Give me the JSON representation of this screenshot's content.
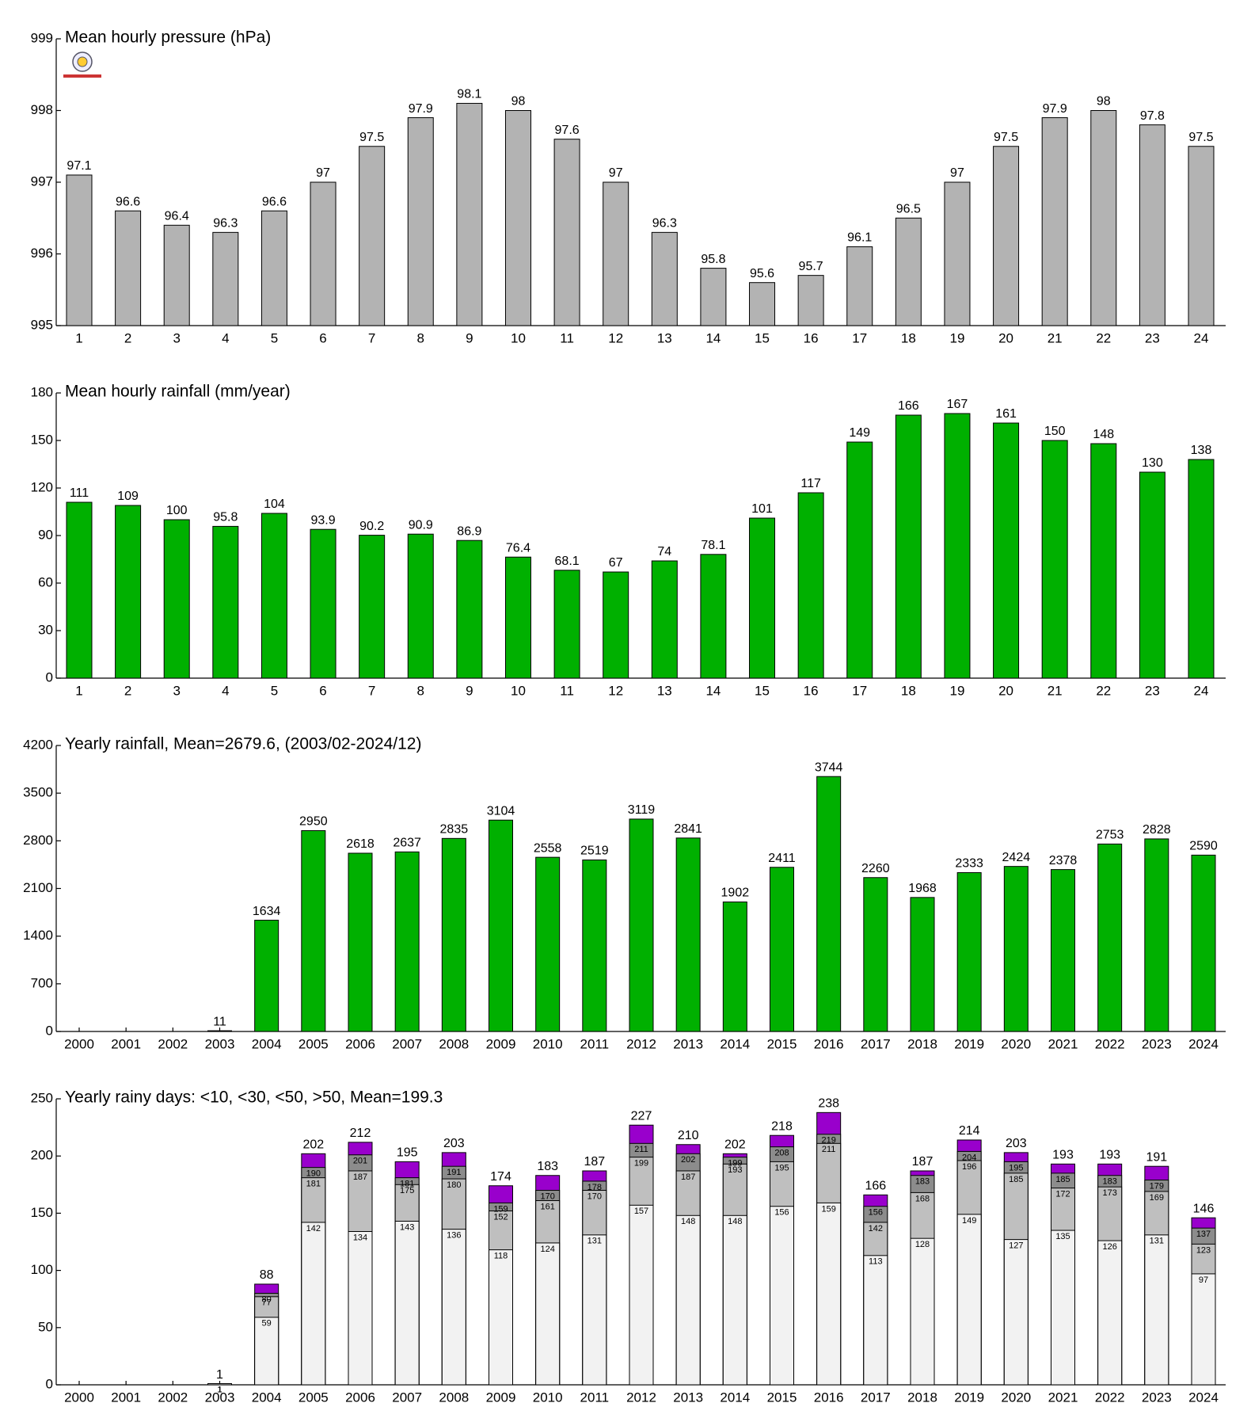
{
  "chart_data": [
    {
      "type": "bar",
      "title": "Mean hourly pressure (hPa)",
      "categories": [
        "1",
        "2",
        "3",
        "4",
        "5",
        "6",
        "7",
        "8",
        "9",
        "10",
        "11",
        "12",
        "13",
        "14",
        "15",
        "16",
        "17",
        "18",
        "19",
        "20",
        "21",
        "22",
        "23",
        "24"
      ],
      "values": [
        997.1,
        996.6,
        996.4,
        996.3,
        996.6,
        997,
        997.5,
        997.9,
        998.1,
        998,
        997.6,
        997,
        996.3,
        995.8,
        995.6,
        995.7,
        996.1,
        996.5,
        997,
        997.5,
        997.9,
        998,
        997.8,
        997.5
      ],
      "value_labels": [
        "97.1",
        "96.6",
        "96.4",
        "96.3",
        "96.6",
        "97",
        "97.5",
        "97.9",
        "98.1",
        "98",
        "97.6",
        "97",
        "96.3",
        "95.8",
        "95.6",
        "95.7",
        "96.1",
        "96.5",
        "97",
        "97.5",
        "97.9",
        "98",
        "97.8",
        "97.5"
      ],
      "color": "#b3b3b3",
      "ylim": [
        995,
        999
      ],
      "yticks": [
        995,
        996,
        997,
        998,
        999
      ]
    },
    {
      "type": "bar",
      "title": "Mean hourly rainfall (mm/year)",
      "categories": [
        "1",
        "2",
        "3",
        "4",
        "5",
        "6",
        "7",
        "8",
        "9",
        "10",
        "11",
        "12",
        "13",
        "14",
        "15",
        "16",
        "17",
        "18",
        "19",
        "20",
        "21",
        "22",
        "23",
        "24"
      ],
      "values": [
        111,
        109,
        100,
        95.8,
        104,
        93.9,
        90.2,
        90.9,
        86.9,
        76.4,
        68.1,
        67,
        74,
        78.1,
        101,
        117,
        149,
        166,
        167,
        161,
        150,
        148,
        130,
        138
      ],
      "color": "#00b000",
      "ylim": [
        0,
        180
      ],
      "yticks": [
        0,
        30,
        60,
        90,
        120,
        150,
        180
      ]
    },
    {
      "type": "bar",
      "title": "Yearly rainfall, Mean=2679.6, (2003/02-2024/12)",
      "categories": [
        "2000",
        "2001",
        "2002",
        "2003",
        "2004",
        "2005",
        "2006",
        "2007",
        "2008",
        "2009",
        "2010",
        "2011",
        "2012",
        "2013",
        "2014",
        "2015",
        "2016",
        "2017",
        "2018",
        "2019",
        "2020",
        "2021",
        "2022",
        "2023",
        "2024"
      ],
      "values": [
        null,
        null,
        null,
        11,
        1634,
        2950,
        2618,
        2637,
        2835,
        3104,
        2558,
        2519,
        3119,
        2841,
        1902,
        2411,
        3744,
        2260,
        1968,
        2333,
        2424,
        2378,
        2753,
        2828,
        2590
      ],
      "color": "#00b000",
      "ylim": [
        0,
        4200
      ],
      "yticks": [
        0,
        700,
        1400,
        2100,
        2800,
        3500,
        4200
      ]
    },
    {
      "type": "bar",
      "title": "Yearly rainy days: <10, <30, <50, >50, Mean=199.3",
      "categories": [
        "2000",
        "2001",
        "2002",
        "2003",
        "2004",
        "2005",
        "2006",
        "2007",
        "2008",
        "2009",
        "2010",
        "2011",
        "2012",
        "2013",
        "2014",
        "2015",
        "2016",
        "2017",
        "2018",
        "2019",
        "2020",
        "2021",
        "2022",
        "2023",
        "2024"
      ],
      "series": [
        {
          "color": "#f2f2f2",
          "values": [
            null,
            null,
            null,
            1,
            59,
            142,
            134,
            143,
            136,
            118,
            124,
            131,
            157,
            148,
            148,
            156,
            159,
            113,
            128,
            149,
            127,
            135,
            126,
            131,
            97
          ]
        },
        {
          "color": "#bfbfbf",
          "values": [
            null,
            null,
            null,
            1,
            77,
            181,
            187,
            175,
            180,
            152,
            161,
            170,
            199,
            187,
            193,
            195,
            211,
            142,
            168,
            196,
            185,
            172,
            173,
            169,
            123
          ]
        },
        {
          "color": "#8c8c8c",
          "values": [
            null,
            null,
            null,
            1,
            80,
            190,
            201,
            181,
            191,
            159,
            170,
            178,
            211,
            202,
            199,
            208,
            219,
            156,
            183,
            204,
            195,
            185,
            183,
            179,
            137
          ]
        },
        {
          "color": "#9900cc",
          "values": [
            null,
            null,
            null,
            1,
            88,
            202,
            212,
            195,
            203,
            174,
            183,
            187,
            227,
            210,
            202,
            218,
            238,
            166,
            187,
            214,
            203,
            193,
            193,
            191,
            146
          ]
        }
      ],
      "ylim": [
        0,
        250
      ],
      "yticks": [
        0,
        50,
        100,
        150,
        200,
        250
      ]
    }
  ]
}
